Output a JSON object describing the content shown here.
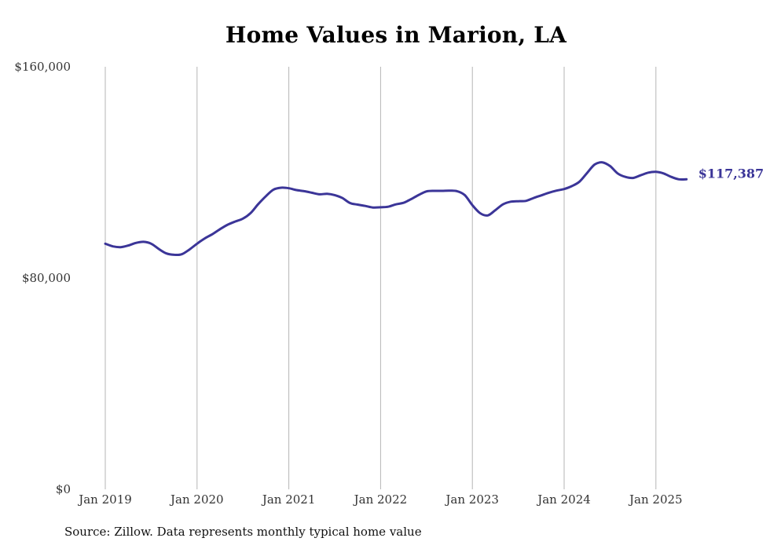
{
  "chart_data": {
    "type": "line",
    "title": "Home Values in Marion, LA",
    "xlabel": "",
    "ylabel": "",
    "ylim": [
      0,
      160000
    ],
    "y_ticks": [
      {
        "value": 0,
        "label": "$0"
      },
      {
        "value": 80000,
        "label": "$80,000"
      },
      {
        "value": 160000,
        "label": "$160,000"
      }
    ],
    "x_ticks": [
      {
        "date": "2019-01",
        "label": "Jan 2019"
      },
      {
        "date": "2020-01",
        "label": "Jan 2020"
      },
      {
        "date": "2021-01",
        "label": "Jan 2021"
      },
      {
        "date": "2022-01",
        "label": "Jan 2022"
      },
      {
        "date": "2023-01",
        "label": "Jan 2023"
      },
      {
        "date": "2024-01",
        "label": "Jan 2024"
      },
      {
        "date": "2025-01",
        "label": "Jan 2025"
      }
    ],
    "x_range": [
      "2019-01",
      "2025-12"
    ],
    "grid": "vertical gridlines at January of each year",
    "line_color": "#3b3598",
    "end_label": "$117,387",
    "series": [
      {
        "x": [
          "2019-01",
          "2019-02",
          "2019-03",
          "2019-04",
          "2019-05",
          "2019-06",
          "2019-07",
          "2019-08",
          "2019-09",
          "2019-10",
          "2019-11",
          "2019-12",
          "2020-01",
          "2020-02",
          "2020-03",
          "2020-04",
          "2020-05",
          "2020-06",
          "2020-07",
          "2020-08",
          "2020-09",
          "2020-10",
          "2020-11",
          "2020-12",
          "2021-01",
          "2021-02",
          "2021-03",
          "2021-04",
          "2021-05",
          "2021-06",
          "2021-07",
          "2021-08",
          "2021-09",
          "2021-10",
          "2021-11",
          "2021-12",
          "2022-01",
          "2022-02",
          "2022-03",
          "2022-04",
          "2022-05",
          "2022-06",
          "2022-07",
          "2022-08",
          "2022-09",
          "2022-10",
          "2022-11",
          "2022-12",
          "2023-01",
          "2023-02",
          "2023-03",
          "2023-04",
          "2023-05",
          "2023-06",
          "2023-07",
          "2023-08",
          "2023-09",
          "2023-10",
          "2023-11",
          "2023-12",
          "2024-01",
          "2024-02",
          "2024-03",
          "2024-04",
          "2024-05",
          "2024-06",
          "2024-07",
          "2024-08",
          "2024-09",
          "2024-10",
          "2024-11",
          "2024-12",
          "2025-01",
          "2025-02",
          "2025-03",
          "2025-04",
          "2025-05"
        ],
        "values": [
          93000,
          92000,
          91700,
          92300,
          93300,
          93700,
          93000,
          91000,
          89300,
          88800,
          89000,
          90800,
          93000,
          95000,
          96600,
          98500,
          100200,
          101400,
          102500,
          104600,
          108000,
          111000,
          113500,
          114200,
          114000,
          113300,
          112900,
          112300,
          111700,
          111900,
          111400,
          110300,
          108400,
          107800,
          107300,
          106700,
          106800,
          107000,
          107900,
          108500,
          109900,
          111500,
          112800,
          113000,
          113000,
          113100,
          112900,
          111400,
          107600,
          104600,
          103700,
          105700,
          107900,
          108900,
          109100,
          109200,
          110300,
          111300,
          112300,
          113100,
          113700,
          114800,
          116500,
          119800,
          123000,
          123800,
          122400,
          119600,
          118300,
          117900,
          118900,
          119900,
          120200,
          119600,
          118300,
          117387,
          117387
        ]
      }
    ]
  },
  "source_note": "Source: Zillow. Data represents monthly typical home value"
}
